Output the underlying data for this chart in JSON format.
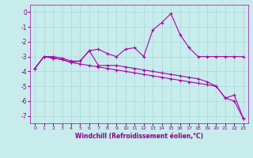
{
  "xlabel": "Windchill (Refroidissement éolien,°C)",
  "ylabel": "",
  "bg_color": "#c8ecec",
  "grid_color": "#a8d8d8",
  "line_color": "#aa00aa",
  "xlim": [
    -0.5,
    23.5
  ],
  "ylim": [
    -7.5,
    0.5
  ],
  "yticks": [
    0,
    -1,
    -2,
    -3,
    -4,
    -5,
    -6,
    -7
  ],
  "xticks": [
    0,
    1,
    2,
    3,
    4,
    5,
    6,
    7,
    8,
    9,
    10,
    11,
    12,
    13,
    14,
    15,
    16,
    17,
    18,
    19,
    20,
    21,
    22,
    23
  ],
  "line1_x": [
    0,
    1,
    2,
    3,
    4,
    5,
    6,
    7,
    8,
    9,
    10,
    11,
    12,
    13,
    14,
    15,
    16,
    17,
    18,
    19,
    20,
    21,
    22,
    23
  ],
  "line1_y": [
    -3.8,
    -3.0,
    -3.0,
    -3.1,
    -3.3,
    -3.3,
    -2.6,
    -2.5,
    -2.8,
    -3.0,
    -2.5,
    -2.4,
    -3.0,
    -1.2,
    -0.7,
    -0.1,
    -1.5,
    -2.4,
    -3.0,
    -3.0,
    -3.0,
    -3.0,
    -3.0,
    -3.0
  ],
  "line2_x": [
    0,
    1,
    2,
    3,
    4,
    5,
    6,
    7,
    8,
    9,
    10,
    11,
    12,
    13,
    14,
    15,
    16,
    17,
    18,
    19,
    20,
    21,
    22,
    23
  ],
  "line2_y": [
    -3.8,
    -3.0,
    -3.1,
    -3.2,
    -3.4,
    -3.3,
    -2.6,
    -3.6,
    -3.6,
    -3.6,
    -3.7,
    -3.8,
    -3.9,
    -4.0,
    -4.1,
    -4.2,
    -4.3,
    -4.4,
    -4.5,
    -4.7,
    -5.0,
    -5.8,
    -5.6,
    -7.2
  ],
  "line3_x": [
    0,
    1,
    2,
    3,
    4,
    5,
    6,
    7,
    8,
    9,
    10,
    11,
    12,
    13,
    14,
    15,
    16,
    17,
    18,
    19,
    20,
    21,
    22,
    23
  ],
  "line3_y": [
    -3.8,
    -3.0,
    -3.1,
    -3.2,
    -3.4,
    -3.5,
    -3.6,
    -3.7,
    -3.8,
    -3.9,
    -4.0,
    -4.1,
    -4.2,
    -4.3,
    -4.4,
    -4.5,
    -4.6,
    -4.7,
    -4.8,
    -4.9,
    -5.0,
    -5.8,
    -6.0,
    -7.2
  ],
  "tick_color": "#880088",
  "xlabel_fontsize": 5.5,
  "xlabel_color": "#880088",
  "ytick_fontsize": 5.5,
  "xtick_fontsize": 4.5
}
